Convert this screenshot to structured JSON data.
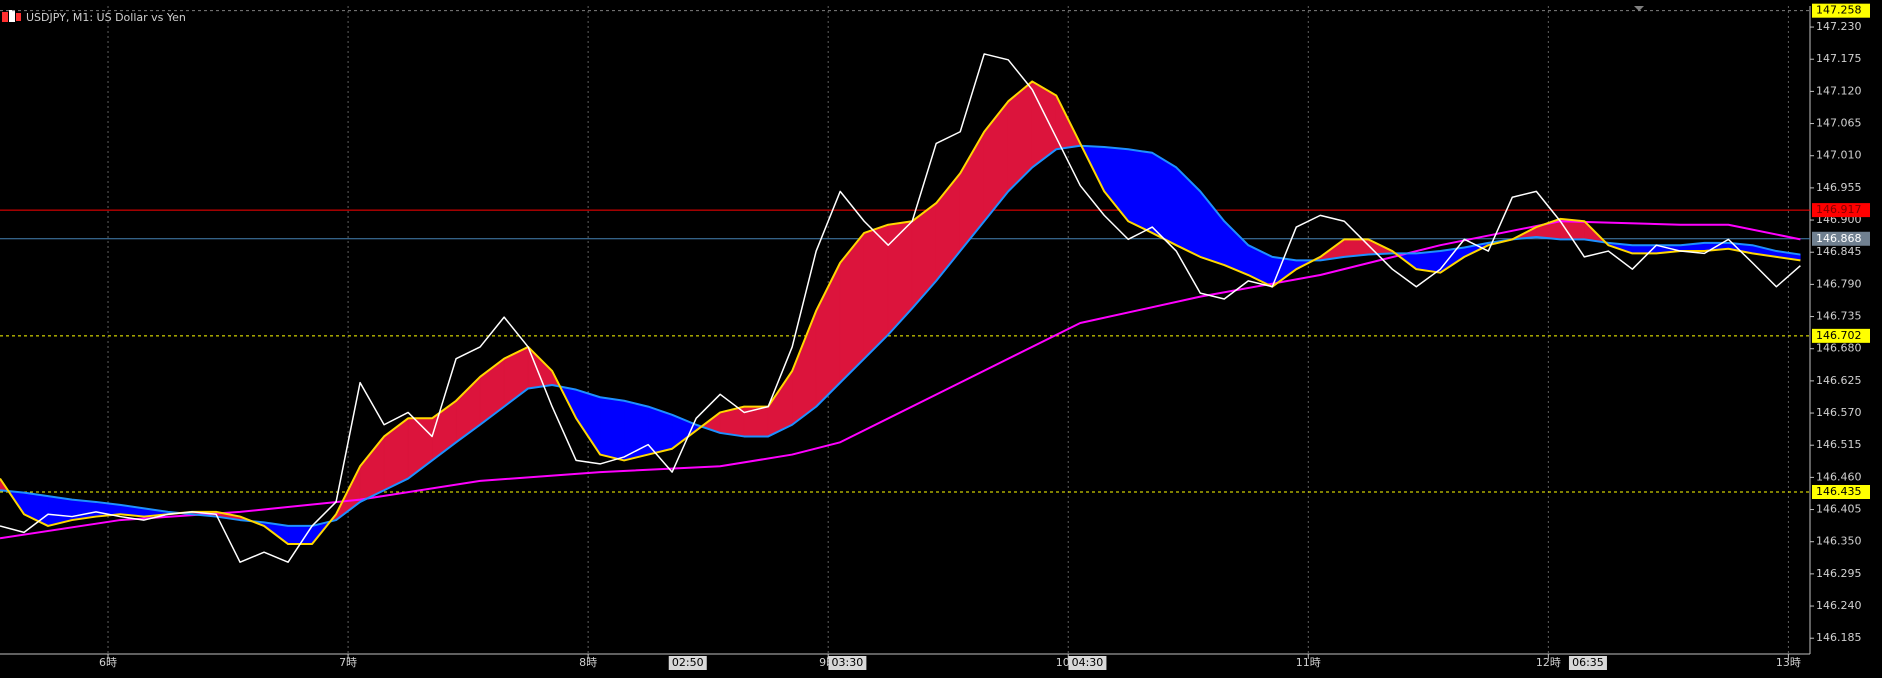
{
  "chart_data": {
    "type": "line",
    "title": "USDJPY, M1:  US Dollar vs Yen",
    "background": "#000000",
    "grid": "vertical",
    "xlim": [
      5.55,
      13.09
    ],
    "ylim": [
      146.158,
      147.266
    ],
    "xticks": [
      {
        "value": 6,
        "label": "6時"
      },
      {
        "value": 7,
        "label": "7時"
      },
      {
        "value": 8,
        "label": "8時"
      },
      {
        "value": 9,
        "label": "9時"
      },
      {
        "value": 10,
        "label": "10時"
      },
      {
        "value": 11,
        "label": "11時"
      },
      {
        "value": 12,
        "label": "12時"
      },
      {
        "value": 13,
        "label": "13時"
      }
    ],
    "yticks": [
      146.185,
      {
        "value": 146.24,
        "label": "146.240"
      },
      146.295,
      {
        "value": 146.35,
        "label": "146.350"
      },
      146.405,
      {
        "value": 146.46,
        "label": "146.460"
      },
      146.515,
      {
        "value": 146.57,
        "label": "146.570"
      },
      146.625,
      {
        "value": 146.68,
        "label": "146.680"
      },
      146.735,
      {
        "value": 146.79,
        "label": "146.790"
      },
      146.845,
      {
        "value": 146.9,
        "label": "146.900"
      },
      146.955,
      {
        "value": 147.01,
        "label": "147.010"
      },
      147.065,
      {
        "value": 147.12,
        "label": "147.120"
      },
      147.175,
      {
        "value": 147.23,
        "label": "147.230"
      }
    ],
    "time_markers": [
      {
        "value": 8.415,
        "label": "02:50"
      },
      {
        "value": 9.08,
        "label": "03:30"
      },
      {
        "value": 10.08,
        "label": "04:30"
      },
      {
        "value": 12.165,
        "label": "06:35"
      }
    ],
    "levels": [
      {
        "value": 147.258,
        "line_color": "#808080",
        "label_color": "#ffff00",
        "text_color": "#000000",
        "dashed": true
      },
      {
        "value": 146.917,
        "line_color": "#ff0000",
        "label_color": "#ff0000",
        "text_color": "#800000",
        "dashed": false
      },
      {
        "value": 146.868,
        "line_color": "#4682b4",
        "label_color": "#708090",
        "text_color": "#ffffff",
        "dashed": false
      },
      {
        "value": 146.702,
        "line_color": "#ffff00",
        "label_color": "#ffff00",
        "text_color": "#000000",
        "dashed": true
      },
      {
        "value": 146.435,
        "line_color": "#ffff00",
        "label_color": "#ffff00",
        "text_color": "#000000",
        "dashed": true
      }
    ],
    "cloud": {
      "upper_series": 1,
      "lower_series": 2,
      "up_color": "#dc143c",
      "down_color": "#0000ff"
    },
    "x": [
      5.55,
      5.65,
      5.75,
      5.85,
      5.95,
      6.05,
      6.15,
      6.25,
      6.35,
      6.45,
      6.55,
      6.65,
      6.75,
      6.85,
      6.95,
      7.05,
      7.15,
      7.25,
      7.35,
      7.45,
      7.55,
      7.65,
      7.75,
      7.85,
      7.95,
      8.05,
      8.15,
      8.25,
      8.35,
      8.45,
      8.55,
      8.65,
      8.75,
      8.85,
      8.95,
      9.05,
      9.15,
      9.25,
      9.35,
      9.45,
      9.55,
      9.65,
      9.75,
      9.85,
      9.95,
      10.05,
      10.15,
      10.25,
      10.35,
      10.45,
      10.55,
      10.65,
      10.75,
      10.85,
      10.95,
      11.05,
      11.15,
      11.25,
      11.35,
      11.45,
      11.55,
      11.65,
      11.75,
      11.85,
      11.95,
      12.05,
      12.15,
      12.25,
      12.35,
      12.45,
      12.55,
      12.65,
      12.75,
      12.85,
      12.95,
      13.05
    ],
    "series": [
      {
        "color": "#ffffff",
        "width": 1.5,
        "values": [
          146.377,
          146.366,
          146.397,
          146.393,
          146.401,
          146.393,
          146.387,
          146.397,
          146.401,
          146.397,
          146.315,
          146.332,
          146.315,
          146.377,
          146.418,
          146.622,
          146.55,
          146.571,
          146.53,
          146.663,
          146.683,
          146.734,
          146.683,
          146.581,
          146.489,
          146.483,
          146.495,
          146.516,
          146.469,
          146.561,
          146.602,
          146.571,
          146.581,
          146.683,
          146.847,
          146.949,
          146.898,
          146.857,
          146.898,
          147.031,
          147.051,
          147.184,
          147.174,
          147.123,
          147.041,
          146.959,
          146.908,
          146.867,
          146.888,
          146.847,
          146.775,
          146.765,
          146.796,
          146.786,
          146.888,
          146.908,
          146.898,
          146.857,
          146.816,
          146.786,
          146.816,
          146.867,
          146.847,
          146.939,
          146.949,
          146.898,
          146.837,
          146.847,
          146.816,
          146.857,
          146.847,
          146.843,
          146.867,
          146.827,
          146.786,
          146.822
        ]
      },
      {
        "color": "#ffd700",
        "width": 2,
        "values": [
          146.458,
          146.397,
          146.377,
          146.387,
          146.393,
          146.397,
          146.393,
          146.397,
          146.401,
          146.401,
          146.393,
          146.377,
          146.346,
          146.346,
          146.397,
          146.479,
          146.53,
          146.561,
          146.561,
          146.591,
          146.632,
          146.663,
          146.683,
          146.642,
          146.561,
          146.499,
          146.489,
          146.499,
          146.509,
          146.54,
          146.571,
          146.581,
          146.581,
          146.642,
          146.745,
          146.827,
          146.878,
          146.892,
          146.898,
          146.929,
          146.98,
          147.051,
          147.103,
          147.137,
          147.113,
          147.031,
          146.949,
          146.898,
          146.878,
          146.857,
          146.837,
          146.823,
          146.806,
          146.786,
          146.816,
          146.837,
          146.867,
          146.867,
          146.847,
          146.816,
          146.81,
          146.837,
          146.857,
          146.867,
          146.888,
          146.902,
          146.898,
          146.857,
          146.843,
          146.843,
          146.847,
          146.847,
          146.851,
          146.843,
          146.837,
          146.831
        ]
      },
      {
        "color": "#1e90ff",
        "width": 2,
        "values": [
          146.438,
          146.434,
          146.428,
          146.422,
          146.418,
          146.413,
          146.407,
          146.401,
          146.397,
          146.393,
          146.387,
          146.383,
          146.377,
          146.377,
          146.387,
          146.418,
          146.438,
          146.458,
          146.489,
          146.52,
          146.55,
          146.581,
          146.612,
          146.618,
          146.61,
          146.597,
          146.591,
          146.581,
          146.567,
          146.55,
          146.536,
          146.53,
          146.53,
          146.55,
          146.581,
          146.622,
          146.663,
          146.704,
          146.749,
          146.796,
          146.847,
          146.898,
          146.949,
          146.99,
          147.021,
          147.027,
          147.025,
          147.021,
          147.015,
          146.99,
          146.949,
          146.898,
          146.857,
          146.837,
          146.831,
          146.831,
          146.837,
          146.841,
          146.843,
          146.843,
          146.847,
          146.853,
          146.861,
          146.867,
          146.871,
          146.867,
          146.867,
          146.861,
          146.857,
          146.857,
          146.857,
          146.861,
          146.861,
          146.857,
          146.847,
          146.841
        ]
      },
      {
        "color": "#ff00ff",
        "width": 2,
        "x": [
          5.55,
          6.05,
          6.55,
          7.05,
          7.55,
          8.05,
          8.55,
          8.85,
          9.05,
          9.55,
          10.05,
          10.55,
          11.05,
          11.55,
          12.05,
          12.55,
          12.75,
          13.05
        ],
        "values": [
          146.356,
          146.387,
          146.401,
          146.422,
          146.454,
          146.469,
          146.479,
          146.499,
          146.52,
          146.622,
          146.724,
          146.769,
          146.806,
          146.857,
          146.898,
          146.892,
          146.892,
          146.867
        ]
      }
    ]
  }
}
